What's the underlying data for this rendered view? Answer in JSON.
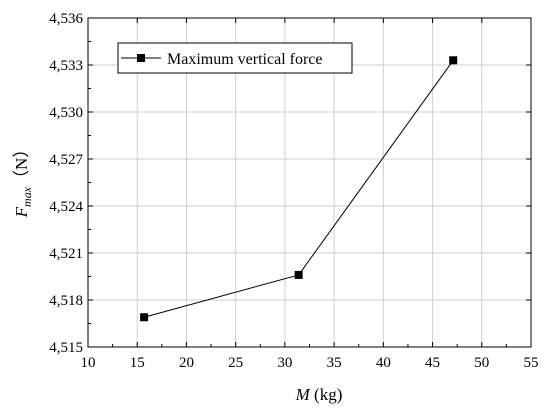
{
  "chart_data": {
    "type": "line",
    "xlabel_main": "M",
    "xlabel_unit": " (kg)",
    "ylabel_main": "F",
    "ylabel_sub": "max",
    "ylabel_unit": "（N）",
    "xlim": [
      10,
      55
    ],
    "ylim": [
      4515,
      4536
    ],
    "x_ticks": [
      10,
      15,
      20,
      25,
      30,
      35,
      40,
      45,
      50,
      55
    ],
    "y_ticks": [
      4515,
      4518,
      4521,
      4524,
      4527,
      4530,
      4533,
      4536
    ],
    "y_tick_labels": [
      "4,515",
      "4,518",
      "4,521",
      "4,524",
      "4,527",
      "4,530",
      "4,533",
      "4,536"
    ],
    "grid": true,
    "legend_position": "top-left",
    "series": [
      {
        "name": "Maximum vertical force",
        "marker": "square",
        "color": "#000000",
        "x": [
          15.7,
          31.4,
          47.1
        ],
        "y": [
          4516.9,
          4519.6,
          4533.3
        ]
      }
    ]
  }
}
